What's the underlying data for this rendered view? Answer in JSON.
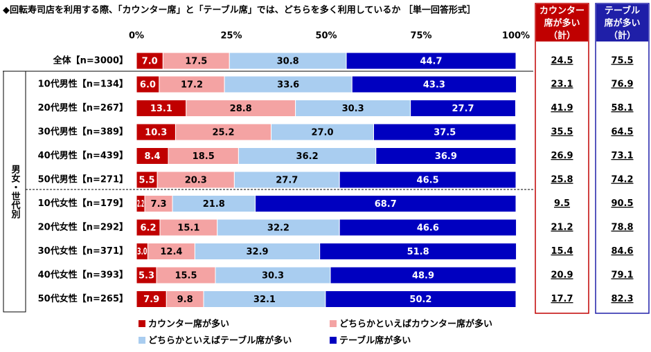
{
  "chart_data": {
    "type": "stacked-barh",
    "title": "◆回転寿司店を利用する際、「カウンター席」と「テーブル席」では、どちらを多く利用しているか ［単一回答形式］",
    "group_label": "男女・世代別",
    "categories": [
      "全体【n=3000】",
      "10代男性【n=134】",
      "20代男性【n=267】",
      "30代男性【n=389】",
      "40代男性【n=439】",
      "50代男性【n=271】",
      "10代女性【n=179】",
      "20代女性【n=292】",
      "30代女性【n=371】",
      "40代女性【n=393】",
      "50代女性【n=265】"
    ],
    "series": [
      {
        "name": "カウンター席が多い",
        "color": "#c00000",
        "label_color": "#ffffff",
        "values": [
          7.0,
          6.0,
          13.1,
          10.3,
          8.4,
          5.5,
          2.2,
          6.2,
          3.0,
          5.3,
          7.9
        ],
        "value_labels": [
          "7.0",
          "6.0",
          "13.1",
          "10.3",
          "8.4",
          "5.5",
          "2.2",
          "6.2",
          "3.0",
          "5.3",
          "7.9"
        ]
      },
      {
        "name": "どちらかといえばカウンター席が多い",
        "color": "#f4a3a3",
        "label_color": "#000000",
        "values": [
          17.5,
          17.2,
          28.8,
          25.2,
          18.5,
          20.3,
          7.3,
          15.1,
          12.4,
          15.5,
          9.8
        ],
        "value_labels": [
          "17.5",
          "17.2",
          "28.8",
          "25.2",
          "18.5",
          "20.3",
          "7.3",
          "15.1",
          "12.4",
          "15.5",
          "9.8"
        ]
      },
      {
        "name": "どちらかといえばテーブル席が多い",
        "color": "#a9cdf0",
        "label_color": "#000000",
        "values": [
          30.8,
          33.6,
          30.3,
          27.0,
          36.2,
          27.7,
          21.8,
          32.2,
          32.9,
          30.3,
          32.1
        ],
        "value_labels": [
          "30.8",
          "33.6",
          "30.3",
          "27.0",
          "36.2",
          "27.7",
          "21.8",
          "32.2",
          "32.9",
          "30.3",
          "32.1"
        ]
      },
      {
        "name": "テーブル席が多い",
        "color": "#0000c0",
        "label_color": "#ffffff",
        "values": [
          44.7,
          43.3,
          27.7,
          37.5,
          36.9,
          46.5,
          68.7,
          46.6,
          51.8,
          48.9,
          50.2
        ],
        "value_labels": [
          "44.7",
          "43.3",
          "27.7",
          "37.5",
          "36.9",
          "46.5",
          "68.7",
          "46.6",
          "51.8",
          "48.9",
          "50.2"
        ]
      }
    ],
    "xlim": [
      0,
      100
    ],
    "xticks": [
      {
        "value": 0,
        "label": "0%"
      },
      {
        "value": 25,
        "label": "25%"
      },
      {
        "value": 50,
        "label": "50%"
      },
      {
        "value": 75,
        "label": "75%"
      },
      {
        "value": 100,
        "label": "100%"
      }
    ],
    "summary_columns": [
      {
        "header": [
          "カウンター",
          "席が多い",
          "（計）"
        ],
        "color": "#c00000",
        "values": [
          24.5,
          23.1,
          41.9,
          35.5,
          26.9,
          25.8,
          9.5,
          21.2,
          15.4,
          20.9,
          17.7
        ]
      },
      {
        "header": [
          "テーブル",
          "席が多い",
          "（計）"
        ],
        "color": "#1f1fa8",
        "values": [
          75.5,
          76.9,
          58.1,
          64.5,
          73.1,
          74.2,
          90.5,
          78.8,
          84.6,
          79.1,
          82.3
        ]
      }
    ]
  }
}
